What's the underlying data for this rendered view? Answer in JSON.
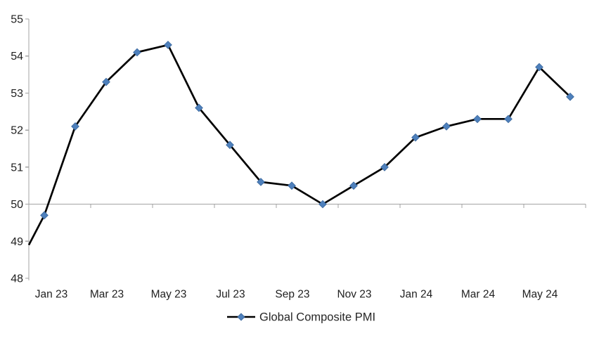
{
  "chart_data": {
    "type": "line",
    "title": "",
    "series": [
      {
        "name": "Global Composite PMI",
        "values": [
          49.7,
          52.1,
          53.3,
          54.1,
          54.3,
          52.6,
          51.6,
          50.6,
          50.5,
          50.0,
          50.5,
          51.0,
          51.8,
          52.1,
          52.3,
          52.3,
          53.7,
          52.9
        ]
      }
    ],
    "categories": [
      "Jan 23",
      "Feb 23",
      "Mar 23",
      "Apr 23",
      "May 23",
      "Jun 23",
      "Jul 23",
      "Aug 23",
      "Sep 23",
      "Oct 23",
      "Nov 23",
      "Dec 23",
      "Jan 24",
      "Feb 24",
      "Mar 24",
      "Apr 24",
      "May 24",
      "Jun 24"
    ],
    "edge_start_value": 48.9,
    "ylim": [
      48,
      55
    ],
    "yticks": [
      48,
      49,
      50,
      51,
      52,
      53,
      54,
      55
    ],
    "ytick_interval": 1,
    "xtick_labels": [
      "Jan 23",
      "Mar 23",
      "May 23",
      "Jul 23",
      "Sep 23",
      "Nov 23",
      "Jan 24",
      "Mar 24",
      "May 24"
    ],
    "xtick_label_every": 2,
    "x_axis_crosses_at": 50,
    "grid": "off",
    "legend_position": "bottom",
    "legend_label": "Global Composite PMI",
    "colors": {
      "line": "#000000",
      "marker_fill": "#4E80BC",
      "marker_border": "#3A679C",
      "axis": "#A3A3A3",
      "tick_label": "#1F1F1F",
      "legend_text": "#262626",
      "background": "#FFFFFF"
    }
  }
}
